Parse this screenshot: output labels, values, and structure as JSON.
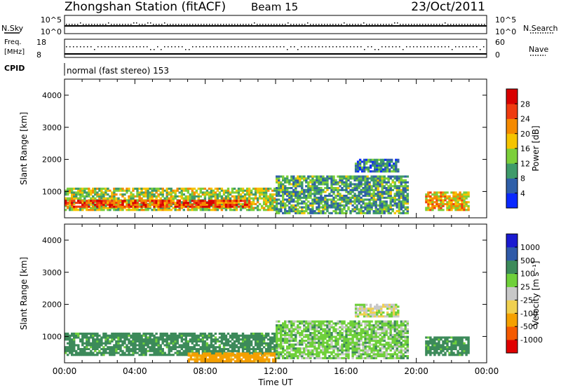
{
  "header": {
    "station": "Zhongshan Station (fitACF)",
    "beam": "Beam 15",
    "date": "23/Oct/2011"
  },
  "noise_panel": {
    "left_label": "N.Sky",
    "left_ticks": [
      "10^5",
      "10^0"
    ],
    "right_ticks": [
      "10^5",
      "10^0"
    ],
    "right_label": "N.Search"
  },
  "freq_panel": {
    "left_label_1": "Freq.",
    "left_label_2": "[MHz]",
    "left_ticks": [
      "18",
      "8"
    ],
    "right_ticks": [
      "60",
      "0"
    ],
    "right_label": "Nave"
  },
  "cpid": {
    "label": "CPID",
    "value": "normal (fast stereo) 153"
  },
  "colors": {
    "power_scale": [
      "#0a28ff",
      "#2f5fa8",
      "#3e9a6a",
      "#7ccf3a",
      "#f5c400",
      "#f58a00",
      "#ef3b10",
      "#d80000"
    ],
    "velocity_scale": [
      "#e00000",
      "#f55a00",
      "#f5a000",
      "#f0d050",
      "#c8c8c8",
      "#6fd03a",
      "#3c8a5a",
      "#2f5aa8",
      "#1a1ad0"
    ],
    "frame": "#000000"
  },
  "chart_data": [
    {
      "type": "heatmap",
      "panel": "power",
      "title": "",
      "xlabel": "Time UT",
      "ylabel": "Slant Range [km]",
      "x_range_hours": [
        0,
        24
      ],
      "y_range_km": [
        180,
        4500
      ],
      "x_tick_labels": [
        "00:00",
        "04:00",
        "08:00",
        "12:00",
        "16:00",
        "20:00",
        "00:00"
      ],
      "y_tick_labels": [
        "1000",
        "2000",
        "3000",
        "4000"
      ],
      "colorbar_label": "Power [dB]",
      "colorbar_ticks": [
        "4",
        "8",
        "12",
        "16",
        "20",
        "24",
        "28"
      ],
      "colorbar_range": [
        0,
        30
      ],
      "regions": [
        {
          "t_start": 0.0,
          "t_end": 12.0,
          "r_min": 400,
          "r_max": 1100,
          "value": 14
        },
        {
          "t_start": 0.0,
          "t_end": 10.5,
          "r_min": 500,
          "r_max": 700,
          "value": 24
        },
        {
          "t_start": 12.0,
          "t_end": 19.5,
          "r_min": 300,
          "r_max": 1500,
          "value": 10
        },
        {
          "t_start": 16.5,
          "t_end": 19.0,
          "r_min": 1600,
          "r_max": 2000,
          "value": 8
        },
        {
          "t_start": 20.5,
          "t_end": 23.0,
          "r_min": 400,
          "r_max": 1000,
          "value": 18
        }
      ]
    },
    {
      "type": "heatmap",
      "panel": "velocity",
      "title": "",
      "xlabel": "Time UT",
      "ylabel": "Slant Range [km]",
      "x_range_hours": [
        0,
        24
      ],
      "y_range_km": [
        180,
        4500
      ],
      "x_tick_labels": [
        "00:00",
        "04:00",
        "08:00",
        "12:00",
        "16:00",
        "20:00",
        "00:00"
      ],
      "y_tick_labels": [
        "1000",
        "2000",
        "3000",
        "4000"
      ],
      "colorbar_label": "Velocity [m s⁻¹]",
      "colorbar_ticks": [
        "1000",
        "500",
        "100",
        "25",
        "-25",
        "-100",
        "-500",
        "-1000"
      ],
      "regions": [
        {
          "t_start": 0.0,
          "t_end": 12.0,
          "r_min": 400,
          "r_max": 1100,
          "value": 150
        },
        {
          "t_start": 7.0,
          "t_end": 12.0,
          "r_min": 200,
          "r_max": 500,
          "value": -150
        },
        {
          "t_start": 12.0,
          "t_end": 19.5,
          "r_min": 300,
          "r_max": 1500,
          "value": 60
        },
        {
          "t_start": 16.5,
          "t_end": 19.0,
          "r_min": 1600,
          "r_max": 2000,
          "value": 0
        },
        {
          "t_start": 20.5,
          "t_end": 23.0,
          "r_min": 400,
          "r_max": 1000,
          "value": 150
        }
      ]
    }
  ]
}
